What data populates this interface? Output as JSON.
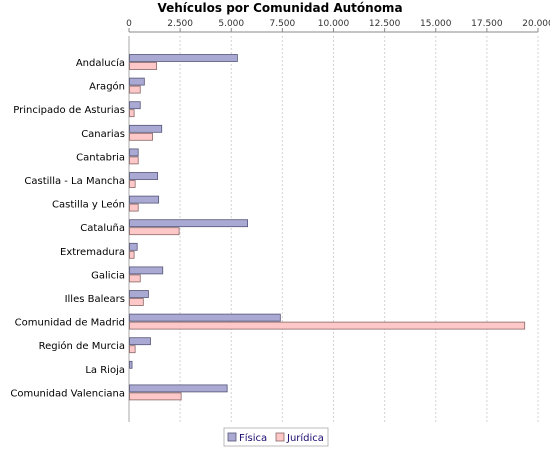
{
  "chart_data": {
    "type": "bar",
    "orientation": "horizontal",
    "title": "Vehículos por Comunidad Autónoma",
    "x_axis_position": "top",
    "xlim": [
      0,
      20000
    ],
    "xticks": [
      0,
      2500,
      5000,
      7500,
      10000,
      12500,
      15000,
      17500,
      20000
    ],
    "xtick_labels": [
      "0",
      "2.500",
      "5.000",
      "7.500",
      "10.000",
      "12.500",
      "15.000",
      "17.500",
      "20.000"
    ],
    "grid": "vertical dashed",
    "legend_position": "bottom",
    "categories": [
      "Andalucía",
      "Aragón",
      "Principado de Asturias",
      "Canarias",
      "Cantabria",
      "Castilla - La Mancha",
      "Castilla y León",
      "Cataluña",
      "Extremadura",
      "Galicia",
      "Illes Balears",
      "Comunidad de Madrid",
      "Región de Murcia",
      "La Rioja",
      "Comunidad Valenciana"
    ],
    "series": [
      {
        "name": "Física",
        "fill": "#a9a9d4",
        "stroke": "#555577",
        "values": [
          5300,
          750,
          550,
          1600,
          450,
          1400,
          1450,
          5800,
          400,
          1650,
          950,
          7400,
          1050,
          150,
          4800
        ]
      },
      {
        "name": "Jurídica",
        "fill": "#ffc8c8",
        "stroke": "#886666",
        "values": [
          1350,
          550,
          250,
          1150,
          450,
          300,
          450,
          2450,
          250,
          550,
          700,
          19350,
          300,
          0,
          2550
        ]
      }
    ]
  }
}
